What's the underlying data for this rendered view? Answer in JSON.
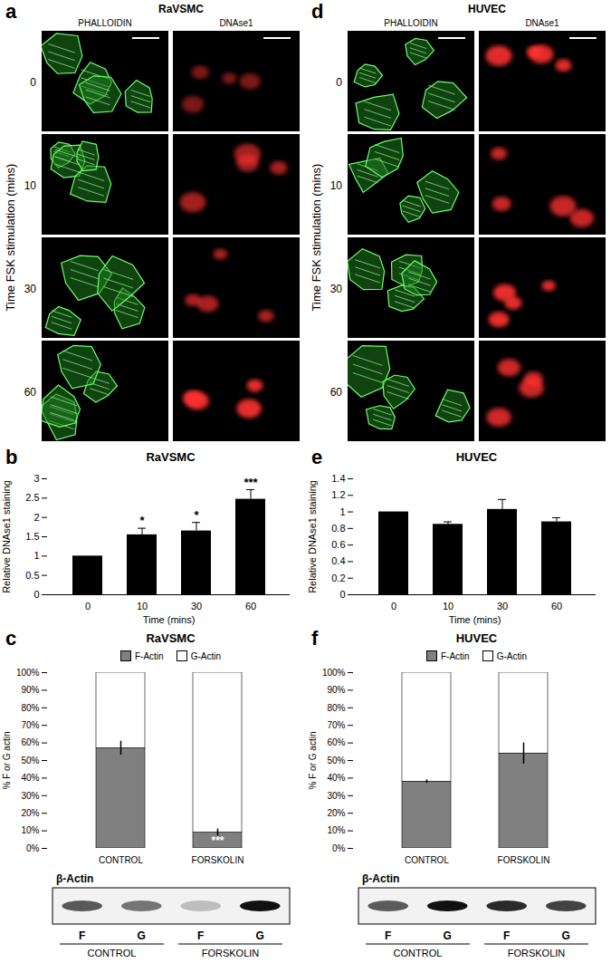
{
  "image_panels": [
    {
      "panel_label": "a",
      "title": "RaVSMC",
      "columns": [
        "PHALLOIDIN",
        "DNAse1"
      ],
      "rows": [
        0,
        10,
        30,
        60
      ],
      "row_title": "Time FSK stimulation (mins)"
    },
    {
      "panel_label": "d",
      "title": "HUVEC",
      "columns": [
        "PHALLOIDIN",
        "DNAse1"
      ],
      "rows": [
        0,
        10,
        30,
        60
      ],
      "row_title": "Time FSK stimulation (mins)"
    }
  ],
  "chart_data": [
    {
      "panel_label": "b",
      "type": "bar",
      "title": "RaVSMC",
      "x_label": "Time (mins)",
      "y_label": "Relative DNAse1 staining",
      "categories": [
        "0",
        "10",
        "30",
        "60"
      ],
      "values": [
        1,
        1.55,
        1.65,
        2.47
      ],
      "errors": [
        0,
        0.17,
        0.22,
        0.25
      ],
      "annotations": [
        null,
        "*",
        "*",
        "***"
      ],
      "color": "#000000",
      "ylim": [
        0,
        3
      ],
      "yticks": [
        0,
        0.5,
        1,
        1.5,
        2,
        2.5,
        3
      ]
    },
    {
      "panel_label": "c",
      "type": "bar",
      "stacked": true,
      "title": "RaVSMC",
      "y_label": "% F or G actin",
      "categories": [
        "CONTROL",
        "FORSKOLIN"
      ],
      "series": [
        {
          "name": "F-Actin",
          "color": "#808080",
          "values": [
            57,
            9
          ],
          "errors": [
            4,
            2
          ],
          "annotations": [
            null,
            "***"
          ]
        },
        {
          "name": "G-Actin",
          "color": "#ffffff",
          "values": [
            43,
            91
          ]
        }
      ],
      "ylim": [
        0,
        100
      ],
      "yticks": [
        {
          "value": 0,
          "label": "0%"
        },
        {
          "value": 10,
          "label": "10%"
        },
        {
          "value": 20,
          "label": "20%"
        },
        {
          "value": 30,
          "label": "30%"
        },
        {
          "value": 40,
          "label": "40%"
        },
        {
          "value": 50,
          "label": "50%"
        },
        {
          "value": 60,
          "label": "60%"
        },
        {
          "value": 70,
          "label": "70%"
        },
        {
          "value": 80,
          "label": "80%"
        },
        {
          "value": 90,
          "label": "90%"
        },
        {
          "value": 100,
          "label": "100%"
        }
      ],
      "legend": "top"
    },
    {
      "panel_label": "e",
      "type": "bar",
      "title": "HUVEC",
      "x_label": "Time (mins)",
      "y_label": "Relative DNAse1 staining",
      "categories": [
        "0",
        "10",
        "30",
        "60"
      ],
      "values": [
        1,
        0.85,
        1.03,
        0.88
      ],
      "errors": [
        0,
        0.03,
        0.12,
        0.05
      ],
      "color": "#000000",
      "ylim": [
        0,
        1.4
      ],
      "yticks": [
        0,
        0.2,
        0.4,
        0.6,
        0.8,
        1,
        1.2,
        1.4
      ]
    },
    {
      "panel_label": "f",
      "type": "bar",
      "stacked": true,
      "title": "HUVEC",
      "y_label": "% F or G actin",
      "categories": [
        "CONTROL",
        "FORSKOLIN"
      ],
      "series": [
        {
          "name": "F-Actin",
          "color": "#808080",
          "values": [
            38,
            54
          ],
          "errors": [
            1,
            6
          ]
        },
        {
          "name": "G-Actin",
          "color": "#ffffff",
          "values": [
            62,
            46
          ]
        }
      ],
      "ylim": [
        0,
        100
      ],
      "yticks": [
        {
          "value": 0,
          "label": "0%"
        },
        {
          "value": 10,
          "label": "10%"
        },
        {
          "value": 20,
          "label": "20%"
        },
        {
          "value": 30,
          "label": "30%"
        },
        {
          "value": 40,
          "label": "40%"
        },
        {
          "value": 50,
          "label": "50%"
        },
        {
          "value": 60,
          "label": "60%"
        },
        {
          "value": 70,
          "label": "70%"
        },
        {
          "value": 80,
          "label": "80%"
        },
        {
          "value": 90,
          "label": "90%"
        },
        {
          "value": 100,
          "label": "100%"
        }
      ],
      "legend": "top"
    }
  ],
  "blots": [
    {
      "panel_label": "c",
      "label": "β-Actin",
      "lanes": [
        "F",
        "G",
        "F",
        "G"
      ],
      "groups": [
        "CONTROL",
        "FORSKOLIN"
      ]
    },
    {
      "panel_label": "f",
      "label": "β-Actin",
      "lanes": [
        "F",
        "G",
        "F",
        "G"
      ],
      "groups": [
        "CONTROL",
        "FORSKOLIN"
      ]
    }
  ]
}
